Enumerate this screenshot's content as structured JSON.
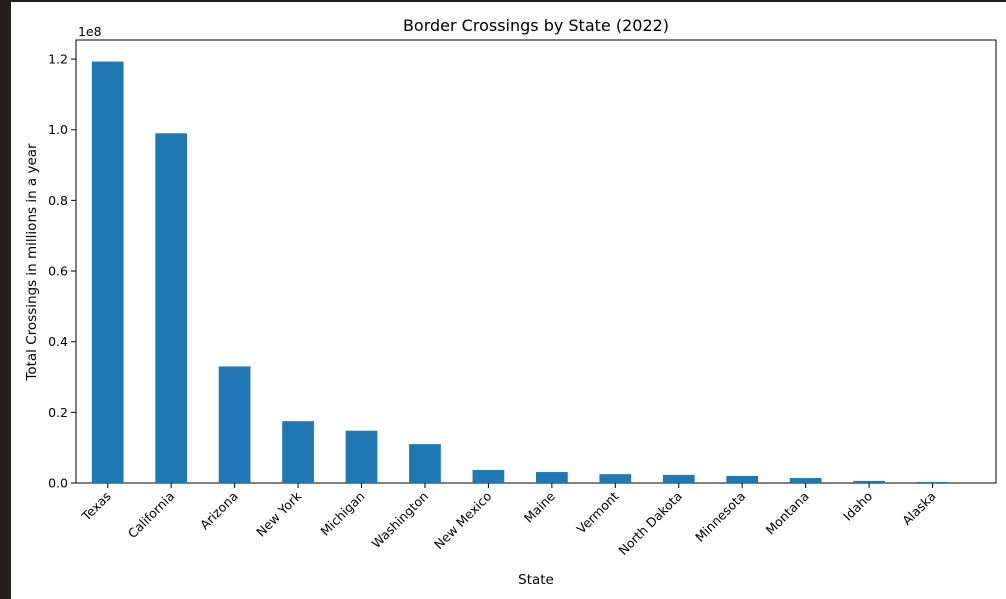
{
  "chart_data": {
    "type": "bar",
    "title": "Border Crossings by State (2022)",
    "xlabel": "State",
    "ylabel": "Total Crossings in millions in a year",
    "offset_text": "1e8",
    "categories": [
      "Texas",
      "California",
      "Arizona",
      "New York",
      "Michigan",
      "Washington",
      "New Mexico",
      "Maine",
      "Vermont",
      "North Dakota",
      "Minnesota",
      "Montana",
      "Idaho",
      "Alaska"
    ],
    "values": [
      119300000,
      99000000,
      33000000,
      17500000,
      14800000,
      11000000,
      3700000,
      3100000,
      2500000,
      2300000,
      2000000,
      1400000,
      600000,
      300000
    ],
    "ylim": [
      0,
      125400000
    ],
    "yticks": [
      0,
      20000000,
      40000000,
      60000000,
      80000000,
      100000000,
      120000000
    ],
    "ytick_labels": [
      "0.0",
      "0.2",
      "0.4",
      "0.6",
      "0.8",
      "1.0",
      "1.2"
    ],
    "bar_color": "#1f77b4",
    "grid": false,
    "legend": false
  }
}
